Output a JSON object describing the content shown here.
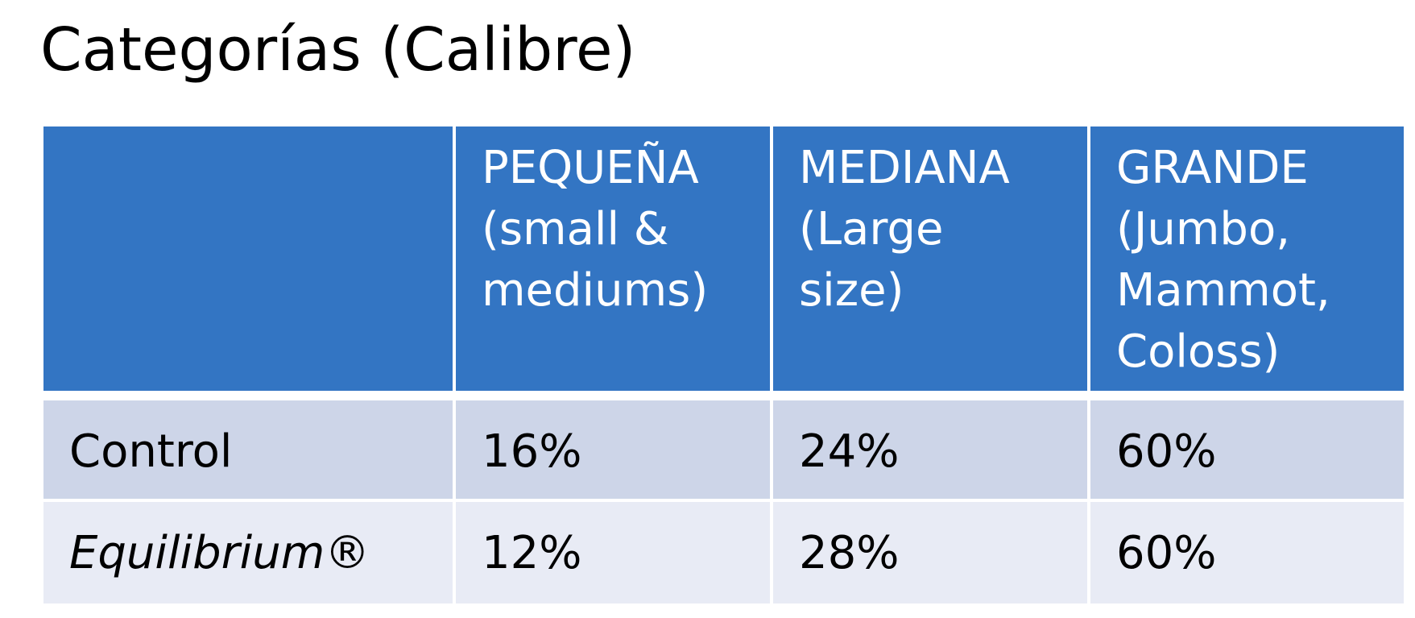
{
  "title": "Categorías (Calibre)",
  "table": {
    "header": {
      "corner": "",
      "columns": [
        {
          "lines": [
            "PEQUEÑA",
            "(small &",
            "mediums)"
          ]
        },
        {
          "lines": [
            "MEDIANA",
            "(Large",
            "size)"
          ]
        },
        {
          "lines": [
            "GRANDE",
            "(Jumbo,",
            "Mammot,",
            "Coloss)"
          ]
        }
      ]
    },
    "rows": [
      {
        "label": "Control",
        "italic": false,
        "values": [
          "16%",
          "24%",
          "60%"
        ]
      },
      {
        "label": "Equilibrium®",
        "italic": true,
        "values": [
          "12%",
          "28%",
          "60%"
        ]
      }
    ]
  },
  "colors": {
    "header_bg": "#3375c3",
    "row_odd_bg": "#cdd5e8",
    "row_even_bg": "#e8ebf5",
    "header_text": "#ffffff",
    "body_text": "#000000"
  }
}
